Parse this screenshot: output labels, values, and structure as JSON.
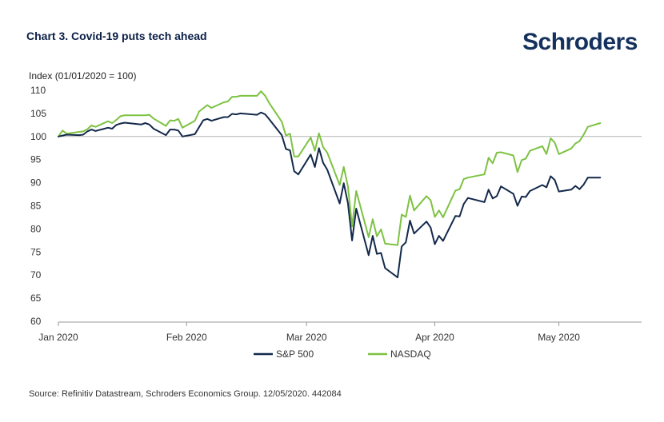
{
  "header": {
    "title": "Chart 3. Covid-19 puts tech ahead",
    "logo_text": "Schroders"
  },
  "footer": {
    "source": "Source: Refinitiv Datastream, Schroders Economics Group. 12/05/2020. 442084"
  },
  "colors": {
    "sp500": "#13294b",
    "nasdaq": "#7dc242",
    "reference_line": "#b3b3b3",
    "axis": "#999999",
    "logo": "#13315c"
  },
  "chart_data": {
    "type": "line",
    "ylabel": "Index (01/01/2020 = 100)",
    "xlabel": "",
    "ylim": [
      60,
      110
    ],
    "yticks": [
      110,
      105,
      100,
      95,
      90,
      85,
      80,
      75,
      70,
      65,
      60
    ],
    "xlim": [
      "2020-01-01",
      "2020-05-21"
    ],
    "xticks": [
      {
        "date": "2020-01-01",
        "label": "Jan 2020"
      },
      {
        "date": "2020-02-01",
        "label": "Feb 2020"
      },
      {
        "date": "2020-03-01",
        "label": "Mar 2020"
      },
      {
        "date": "2020-04-01",
        "label": "Apr 2020"
      },
      {
        "date": "2020-05-01",
        "label": "May 2020"
      }
    ],
    "reference_line": 100,
    "legend_position": "bottom-center",
    "series": [
      {
        "name": "S&P 500",
        "color_key": "sp500",
        "points": [
          [
            "2020-01-01",
            100.0
          ],
          [
            "2020-01-02",
            100.2
          ],
          [
            "2020-01-03",
            100.4
          ],
          [
            "2020-01-06",
            100.3
          ],
          [
            "2020-01-07",
            100.4
          ],
          [
            "2020-01-08",
            101.1
          ],
          [
            "2020-01-09",
            101.5
          ],
          [
            "2020-01-10",
            101.2
          ],
          [
            "2020-01-13",
            101.9
          ],
          [
            "2020-01-14",
            101.7
          ],
          [
            "2020-01-15",
            102.5
          ],
          [
            "2020-01-16",
            102.8
          ],
          [
            "2020-01-17",
            103.0
          ],
          [
            "2020-01-21",
            102.6
          ],
          [
            "2020-01-22",
            102.9
          ],
          [
            "2020-01-23",
            102.6
          ],
          [
            "2020-01-24",
            101.7
          ],
          [
            "2020-01-27",
            100.3
          ],
          [
            "2020-01-28",
            101.5
          ],
          [
            "2020-01-29",
            101.5
          ],
          [
            "2020-01-30",
            101.3
          ],
          [
            "2020-01-31",
            100.0
          ],
          [
            "2020-02-03",
            100.5
          ],
          [
            "2020-02-04",
            102.0
          ],
          [
            "2020-02-05",
            103.5
          ],
          [
            "2020-02-06",
            103.8
          ],
          [
            "2020-02-07",
            103.4
          ],
          [
            "2020-02-10",
            104.2
          ],
          [
            "2020-02-11",
            104.2
          ],
          [
            "2020-02-12",
            104.9
          ],
          [
            "2020-02-13",
            104.8
          ],
          [
            "2020-02-14",
            105.0
          ],
          [
            "2020-02-18",
            104.7
          ],
          [
            "2020-02-19",
            105.2
          ],
          [
            "2020-02-20",
            104.8
          ],
          [
            "2020-02-21",
            103.7
          ],
          [
            "2020-02-24",
            100.3
          ],
          [
            "2020-02-25",
            97.3
          ],
          [
            "2020-02-26",
            97.0
          ],
          [
            "2020-02-27",
            92.5
          ],
          [
            "2020-02-28",
            91.8
          ],
          [
            "2020-03-02",
            96.1
          ],
          [
            "2020-03-03",
            93.4
          ],
          [
            "2020-03-04",
            97.5
          ],
          [
            "2020-03-05",
            94.3
          ],
          [
            "2020-03-06",
            92.8
          ],
          [
            "2020-03-09",
            85.5
          ],
          [
            "2020-03-10",
            89.9
          ],
          [
            "2020-03-11",
            85.6
          ],
          [
            "2020-03-12",
            77.5
          ],
          [
            "2020-03-13",
            84.4
          ],
          [
            "2020-03-16",
            74.3
          ],
          [
            "2020-03-17",
            78.5
          ],
          [
            "2020-03-18",
            74.6
          ],
          [
            "2020-03-19",
            74.8
          ],
          [
            "2020-03-20",
            71.5
          ],
          [
            "2020-03-23",
            69.5
          ],
          [
            "2020-03-24",
            76.2
          ],
          [
            "2020-03-25",
            77.1
          ],
          [
            "2020-03-26",
            81.8
          ],
          [
            "2020-03-27",
            79.0
          ],
          [
            "2020-03-30",
            81.6
          ],
          [
            "2020-03-31",
            80.3
          ],
          [
            "2020-04-01",
            76.7
          ],
          [
            "2020-04-02",
            78.5
          ],
          [
            "2020-04-03",
            77.4
          ],
          [
            "2020-04-06",
            82.8
          ],
          [
            "2020-04-07",
            82.7
          ],
          [
            "2020-04-08",
            85.4
          ],
          [
            "2020-04-09",
            86.7
          ],
          [
            "2020-04-13",
            85.8
          ],
          [
            "2020-04-14",
            88.5
          ],
          [
            "2020-04-15",
            86.6
          ],
          [
            "2020-04-16",
            87.1
          ],
          [
            "2020-04-17",
            89.2
          ],
          [
            "2020-04-20",
            87.6
          ],
          [
            "2020-04-21",
            85.0
          ],
          [
            "2020-04-22",
            87.0
          ],
          [
            "2020-04-23",
            86.9
          ],
          [
            "2020-04-24",
            88.2
          ],
          [
            "2020-04-27",
            89.5
          ],
          [
            "2020-04-28",
            89.0
          ],
          [
            "2020-04-29",
            91.4
          ],
          [
            "2020-04-30",
            90.6
          ],
          [
            "2020-05-01",
            88.1
          ],
          [
            "2020-05-04",
            88.5
          ],
          [
            "2020-05-05",
            89.3
          ],
          [
            "2020-05-06",
            88.6
          ],
          [
            "2020-05-07",
            89.6
          ],
          [
            "2020-05-08",
            91.1
          ],
          [
            "2020-05-11",
            91.1
          ]
        ]
      },
      {
        "name": "NASDAQ",
        "color_key": "nasdaq",
        "points": [
          [
            "2020-01-01",
            100.0
          ],
          [
            "2020-01-02",
            101.3
          ],
          [
            "2020-01-03",
            100.6
          ],
          [
            "2020-01-06",
            101.0
          ],
          [
            "2020-01-07",
            101.1
          ],
          [
            "2020-01-08",
            101.6
          ],
          [
            "2020-01-09",
            102.4
          ],
          [
            "2020-01-10",
            102.1
          ],
          [
            "2020-01-13",
            103.3
          ],
          [
            "2020-01-14",
            102.9
          ],
          [
            "2020-01-15",
            103.6
          ],
          [
            "2020-01-16",
            104.4
          ],
          [
            "2020-01-17",
            104.6
          ],
          [
            "2020-01-21",
            104.6
          ],
          [
            "2020-01-22",
            104.6
          ],
          [
            "2020-01-23",
            104.7
          ],
          [
            "2020-01-24",
            103.9
          ],
          [
            "2020-01-27",
            102.3
          ],
          [
            "2020-01-28",
            103.5
          ],
          [
            "2020-01-29",
            103.4
          ],
          [
            "2020-01-30",
            103.8
          ],
          [
            "2020-01-31",
            101.9
          ],
          [
            "2020-02-03",
            103.4
          ],
          [
            "2020-02-04",
            105.4
          ],
          [
            "2020-02-05",
            106.1
          ],
          [
            "2020-02-06",
            106.8
          ],
          [
            "2020-02-07",
            106.2
          ],
          [
            "2020-02-10",
            107.4
          ],
          [
            "2020-02-11",
            107.6
          ],
          [
            "2020-02-12",
            108.6
          ],
          [
            "2020-02-13",
            108.6
          ],
          [
            "2020-02-14",
            108.8
          ],
          [
            "2020-02-18",
            108.8
          ],
          [
            "2020-02-19",
            109.8
          ],
          [
            "2020-02-20",
            108.8
          ],
          [
            "2020-02-21",
            107.2
          ],
          [
            "2020-02-24",
            103.2
          ],
          [
            "2020-02-25",
            100.2
          ],
          [
            "2020-02-26",
            100.6
          ],
          [
            "2020-02-27",
            95.7
          ],
          [
            "2020-02-28",
            95.7
          ],
          [
            "2020-03-02",
            99.8
          ],
          [
            "2020-03-03",
            96.9
          ],
          [
            "2020-03-04",
            100.7
          ],
          [
            "2020-03-05",
            97.7
          ],
          [
            "2020-03-06",
            96.5
          ],
          [
            "2020-03-09",
            89.5
          ],
          [
            "2020-03-10",
            93.4
          ],
          [
            "2020-03-11",
            89.2
          ],
          [
            "2020-03-12",
            80.5
          ],
          [
            "2020-03-13",
            88.2
          ],
          [
            "2020-03-16",
            78.2
          ],
          [
            "2020-03-17",
            82.1
          ],
          [
            "2020-03-18",
            78.4
          ],
          [
            "2020-03-19",
            79.9
          ],
          [
            "2020-03-20",
            76.8
          ],
          [
            "2020-03-23",
            76.5
          ],
          [
            "2020-03-24",
            83.1
          ],
          [
            "2020-03-25",
            82.6
          ],
          [
            "2020-03-26",
            87.2
          ],
          [
            "2020-03-27",
            84.0
          ],
          [
            "2020-03-30",
            87.1
          ],
          [
            "2020-03-31",
            86.2
          ],
          [
            "2020-04-01",
            82.6
          ],
          [
            "2020-04-02",
            84.0
          ],
          [
            "2020-04-03",
            82.5
          ],
          [
            "2020-04-06",
            88.3
          ],
          [
            "2020-04-07",
            88.6
          ],
          [
            "2020-04-08",
            90.8
          ],
          [
            "2020-04-09",
            91.1
          ],
          [
            "2020-04-13",
            91.8
          ],
          [
            "2020-04-14",
            95.4
          ],
          [
            "2020-04-15",
            94.2
          ],
          [
            "2020-04-16",
            96.5
          ],
          [
            "2020-04-17",
            96.6
          ],
          [
            "2020-04-20",
            95.9
          ],
          [
            "2020-04-21",
            92.3
          ],
          [
            "2020-04-22",
            94.9
          ],
          [
            "2020-04-23",
            95.2
          ],
          [
            "2020-04-24",
            96.9
          ],
          [
            "2020-04-27",
            97.9
          ],
          [
            "2020-04-28",
            96.2
          ],
          [
            "2020-04-29",
            99.6
          ],
          [
            "2020-04-30",
            98.7
          ],
          [
            "2020-05-01",
            96.2
          ],
          [
            "2020-05-04",
            97.4
          ],
          [
            "2020-05-05",
            98.5
          ],
          [
            "2020-05-06",
            99.0
          ],
          [
            "2020-05-07",
            100.4
          ],
          [
            "2020-05-08",
            102.1
          ],
          [
            "2020-05-11",
            102.9
          ]
        ]
      }
    ]
  }
}
